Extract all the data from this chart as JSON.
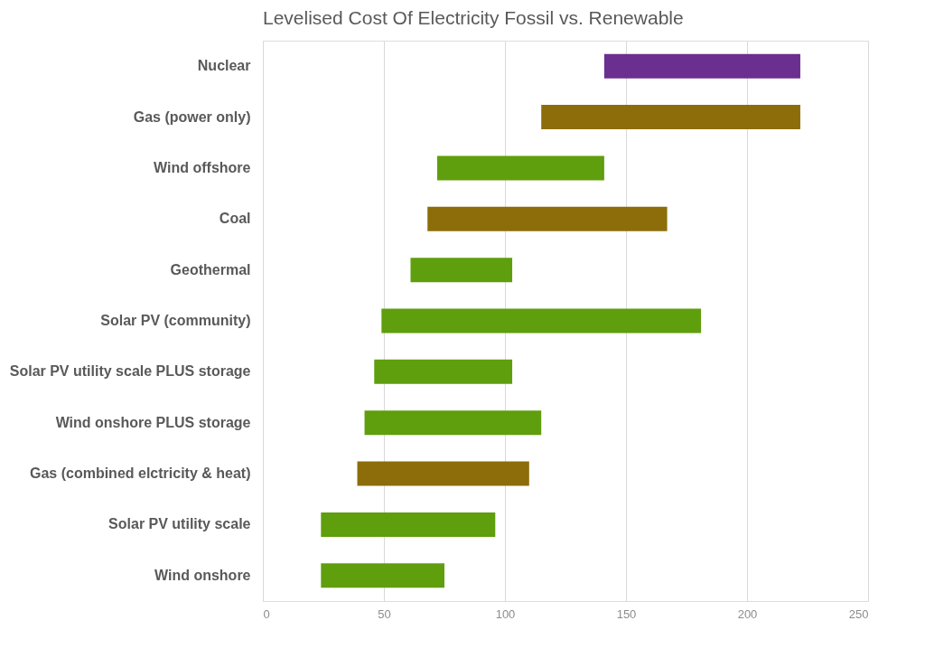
{
  "chart_data": {
    "type": "bar",
    "orientation": "horizontal",
    "title": "Levelised Cost Of Electricity Fossil vs. Renewable",
    "categories": [
      "Nuclear",
      "Gas (power only)",
      "Wind offshore",
      "Coal",
      "Geothermal",
      "Solar PV (community)",
      "Solar PV utility scale PLUS storage",
      "Wind onshore PLUS storage",
      "Gas (combined elctricity & heat)",
      "Solar PV utility scale",
      "Wind onshore"
    ],
    "base": [
      141,
      115,
      72,
      68,
      61,
      49,
      46,
      42,
      39,
      24,
      24
    ],
    "values": [
      81,
      107,
      69,
      99,
      42,
      132,
      57,
      73,
      71,
      72,
      51
    ],
    "colors": [
      "#6a2f8f",
      "#8c6d0a",
      "#5f9e0c",
      "#8c6d0a",
      "#5f9e0c",
      "#5f9e0c",
      "#5f9e0c",
      "#5f9e0c",
      "#8c6d0a",
      "#5f9e0c",
      "#5f9e0c"
    ],
    "xlim": [
      0,
      250
    ],
    "xticks": [
      0,
      50,
      100,
      150,
      200,
      250
    ],
    "grid": "x",
    "legend": false
  }
}
